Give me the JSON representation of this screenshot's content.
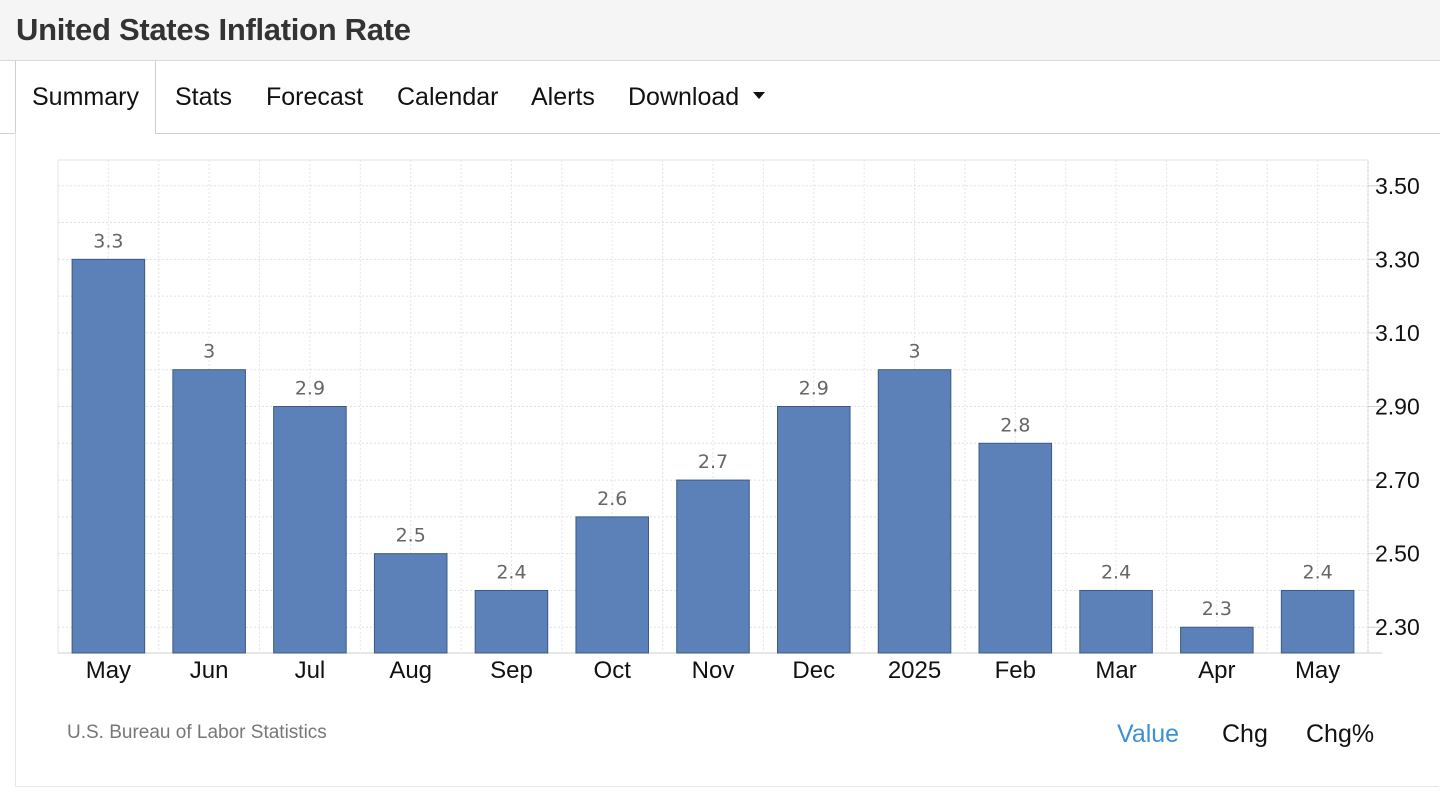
{
  "header": {
    "title": "United States Inflation Rate"
  },
  "tabs": [
    {
      "label": "Summary",
      "active": true
    },
    {
      "label": "Stats"
    },
    {
      "label": "Forecast"
    },
    {
      "label": "Calendar"
    },
    {
      "label": "Alerts"
    },
    {
      "label": "Download",
      "dropdown": true
    }
  ],
  "chart_data": {
    "type": "bar",
    "categories": [
      "May",
      "Jun",
      "Jul",
      "Aug",
      "Sep",
      "Oct",
      "Nov",
      "Dec",
      "2025",
      "Feb",
      "Mar",
      "Apr",
      "May"
    ],
    "values": [
      3.3,
      3,
      2.9,
      2.5,
      2.4,
      2.6,
      2.7,
      2.9,
      3,
      2.8,
      2.4,
      2.3,
      2.4
    ],
    "data_labels": [
      "3.3",
      "3",
      "2.9",
      "2.5",
      "2.4",
      "2.6",
      "2.7",
      "2.9",
      "3",
      "2.8",
      "2.4",
      "2.3",
      "2.4"
    ],
    "y_ticks": [
      "3.50",
      "3.30",
      "3.10",
      "2.90",
      "2.70",
      "2.50",
      "2.30"
    ],
    "ylim": [
      2.23,
      3.57
    ],
    "y_axis_side": "right",
    "grid": true,
    "bar_color": "#5b81b8",
    "bar_edge_color": "#3b5a86"
  },
  "source": "U.S. Bureau of Labor Statistics",
  "display_modes": [
    {
      "label": "Value",
      "active": true
    },
    {
      "label": "Chg"
    },
    {
      "label": "Chg%"
    }
  ],
  "colors": {
    "accent": "#3d8fd6"
  }
}
